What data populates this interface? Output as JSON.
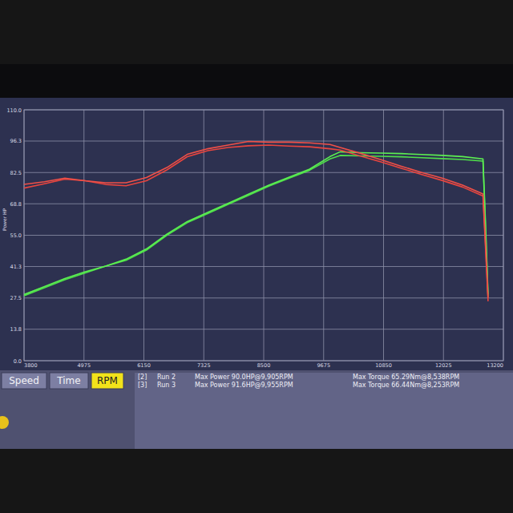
{
  "chart_data": {
    "type": "line",
    "y_label": "Power HP",
    "x": [
      3800,
      4200,
      4600,
      5000,
      5400,
      5800,
      6200,
      6600,
      7000,
      7400,
      7800,
      8200,
      8600,
      9000,
      9400,
      9800,
      10000,
      10400,
      10800,
      11200,
      11600,
      12000,
      12400,
      12800,
      12850,
      12900
    ],
    "xlim": [
      3800,
      13200
    ],
    "xticks": [
      3800,
      4975,
      6150,
      7325,
      8500,
      9675,
      10850,
      12025,
      13200
    ],
    "ylim": [
      0,
      110
    ],
    "yticks": [
      {
        "value": 0,
        "label": "0.0"
      },
      13.8,
      27.5,
      41.3,
      {
        "value": 55,
        "label": "55.0"
      },
      68.8,
      82.5,
      96.3,
      {
        "value": 110,
        "label": "110.0"
      }
    ],
    "y2lim": [
      0,
      76
    ],
    "grid": true,
    "series": [
      {
        "color": "#4fe04a",
        "values": [
          28.5,
          32,
          35.5,
          38.5,
          41.5,
          44,
          48.5,
          55,
          60.5,
          64.5,
          68.5,
          72.5,
          76.5,
          80,
          83.5,
          88.5,
          90,
          89.8,
          89.6,
          89.4,
          89,
          88.6,
          88.2,
          87.5,
          58,
          28
        ]
      },
      {
        "color": "#5cf052",
        "values": [
          29,
          32.5,
          36,
          39,
          41.5,
          44.5,
          49,
          55.5,
          61,
          65,
          69,
          73,
          77,
          80.5,
          84,
          89.5,
          91.6,
          91.2,
          91,
          90.8,
          90.4,
          90,
          89.5,
          88.5,
          60,
          29
        ]
      },
      {
        "color": "#e8453f",
        "axis": "y2",
        "values": [
          52.3,
          53.6,
          55.0,
          54.5,
          53.4,
          53.0,
          54.5,
          57.8,
          61.8,
          63.6,
          64.6,
          65.1,
          65.3,
          65.0,
          64.8,
          64.2,
          63.8,
          62.0,
          60.2,
          58.3,
          56.4,
          54.6,
          52.6,
          49.9,
          34,
          18
        ]
      },
      {
        "color": "#f05048",
        "axis": "y2",
        "values": [
          53.4,
          54.2,
          55.3,
          54.5,
          53.9,
          53.9,
          55.5,
          58.5,
          62.5,
          64.2,
          65.3,
          66.4,
          66.2,
          66.2,
          66.0,
          65.5,
          64.6,
          62.8,
          60.9,
          58.9,
          57.0,
          55.3,
          53.2,
          50.5,
          35,
          19
        ]
      }
    ]
  },
  "tabs": {
    "items": [
      "Speed",
      "Time",
      "RPM"
    ],
    "selected": "RPM"
  },
  "summary": {
    "rows": [
      [
        "[2]",
        "Run 2",
        "Max Power 90.0HP@9,905RPM",
        "Max Torque 65.29Nm@8,538RPM"
      ],
      [
        "[3]",
        "Run 3",
        "Max Power 91.6HP@9,955RPM",
        "Max Torque 66.44Nm@8,253RPM"
      ]
    ]
  }
}
